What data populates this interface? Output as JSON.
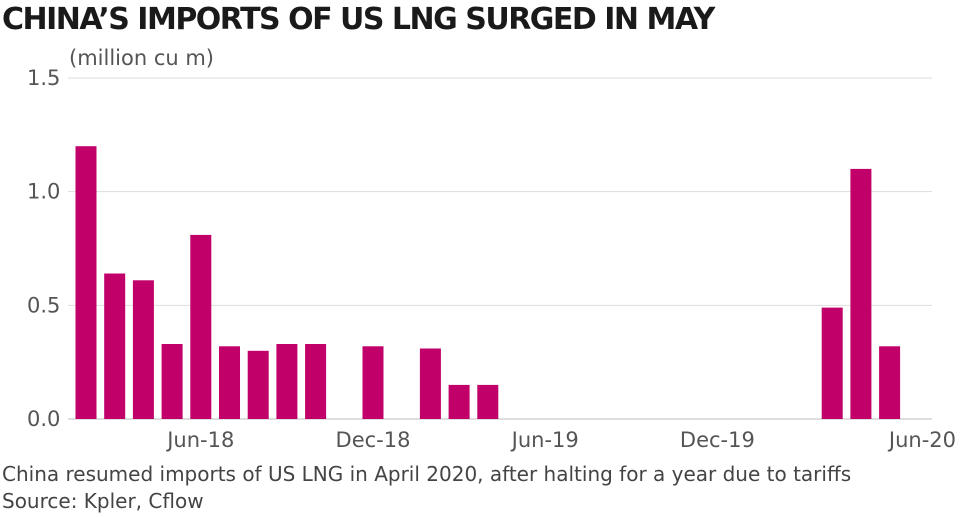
{
  "chart_data": {
    "type": "bar",
    "title": "CHINA’S IMPORTS OF US LNG SURGED IN MAY",
    "unit_label": "(million cu m)",
    "ylim": [
      0,
      1.5
    ],
    "yticks": [
      "0.0",
      "0.5",
      "1.0",
      "1.5"
    ],
    "grid": true,
    "bar_color": "#c2006a",
    "categories": [
      "Feb-18",
      "Mar-18",
      "Apr-18",
      "May-18",
      "Jun-18",
      "Jul-18",
      "Aug-18",
      "Sep-18",
      "Oct-18",
      "Nov-18",
      "Dec-18",
      "Jan-19",
      "Feb-19",
      "Mar-19",
      "Apr-19",
      "May-19",
      "Jun-19",
      "Jul-19",
      "Aug-19",
      "Sep-19",
      "Oct-19",
      "Nov-19",
      "Dec-19",
      "Jan-20",
      "Feb-20",
      "Mar-20",
      "Apr-20",
      "May-20",
      "Jun-20"
    ],
    "values": [
      1.2,
      0.64,
      0.61,
      0.33,
      0.81,
      0.32,
      0.3,
      0.33,
      0.33,
      0,
      0.32,
      0,
      0.31,
      0.15,
      0.15,
      0,
      0,
      0,
      0,
      0,
      0,
      0,
      0,
      0,
      0,
      0,
      0.49,
      1.1,
      0.32
    ],
    "xticks": [
      "Jun-18",
      "Dec-18",
      "Jun-19",
      "Dec-19",
      "Jun-20"
    ]
  },
  "footnote": "China resumed imports of US LNG in April 2020, after halting for a year due to tariffs",
  "source": "Source: Kpler, Cflow"
}
